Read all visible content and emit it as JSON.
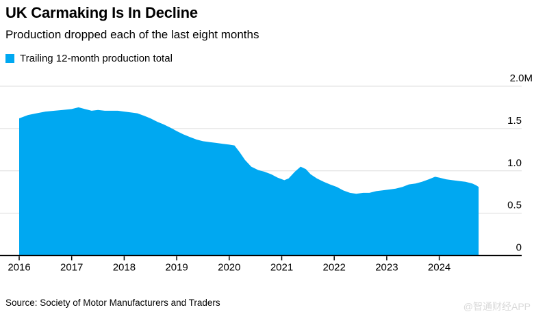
{
  "header": {
    "title": "UK Carmaking Is In Decline",
    "subtitle": "Production dropped each of the last eight months"
  },
  "legend": {
    "label": "Trailing 12-month production total",
    "swatch_color": "#00a8f1"
  },
  "source": {
    "label": "Source: Society of Motor Manufacturers and Traders"
  },
  "watermark": {
    "label": "@智通财经APP"
  },
  "colors": {
    "area": "#00a8f1",
    "gridline": "#dcdcdc",
    "axis": "#000000",
    "tick_label": "#000000",
    "watermark": "#d9d9d9"
  },
  "chart_data": {
    "type": "area",
    "title": "UK Carmaking Is In Decline",
    "subtitle": "Production dropped each of the last eight months",
    "unit": "M vehicles",
    "grid": "horizontal",
    "legend_position": "top-left",
    "y_axis_side": "right",
    "ylim": [
      0,
      2.0
    ],
    "x_range_shown": [
      2016.0,
      2024.75
    ],
    "yticks": [
      {
        "value": 0.0,
        "label": "0"
      },
      {
        "value": 0.5,
        "label": "0.5"
      },
      {
        "value": 1.0,
        "label": "1.0"
      },
      {
        "value": 1.5,
        "label": "1.5"
      },
      {
        "value": 2.0,
        "label": "2.0M"
      }
    ],
    "xticks": [
      {
        "value": 2016,
        "label": "2016"
      },
      {
        "value": 2017,
        "label": "2017"
      },
      {
        "value": 2018,
        "label": "2018"
      },
      {
        "value": 2019,
        "label": "2019"
      },
      {
        "value": 2020,
        "label": "2020"
      },
      {
        "value": 2021,
        "label": "2021"
      },
      {
        "value": 2022,
        "label": "2022"
      },
      {
        "value": 2023,
        "label": "2023"
      },
      {
        "value": 2024,
        "label": "2024"
      }
    ],
    "series": [
      {
        "name": "Trailing 12-month production total",
        "points": [
          [
            2016.0,
            1.62
          ],
          [
            2016.17,
            1.66
          ],
          [
            2016.33,
            1.68
          ],
          [
            2016.5,
            1.7
          ],
          [
            2016.67,
            1.71
          ],
          [
            2016.83,
            1.72
          ],
          [
            2017.0,
            1.73
          ],
          [
            2017.13,
            1.75
          ],
          [
            2017.25,
            1.73
          ],
          [
            2017.38,
            1.71
          ],
          [
            2017.5,
            1.72
          ],
          [
            2017.63,
            1.71
          ],
          [
            2017.75,
            1.71
          ],
          [
            2017.88,
            1.71
          ],
          [
            2018.0,
            1.7
          ],
          [
            2018.13,
            1.69
          ],
          [
            2018.25,
            1.68
          ],
          [
            2018.38,
            1.65
          ],
          [
            2018.5,
            1.62
          ],
          [
            2018.63,
            1.58
          ],
          [
            2018.75,
            1.55
          ],
          [
            2018.88,
            1.51
          ],
          [
            2019.0,
            1.47
          ],
          [
            2019.13,
            1.43
          ],
          [
            2019.25,
            1.4
          ],
          [
            2019.38,
            1.37
          ],
          [
            2019.5,
            1.35
          ],
          [
            2019.63,
            1.34
          ],
          [
            2019.75,
            1.33
          ],
          [
            2019.88,
            1.32
          ],
          [
            2020.0,
            1.31
          ],
          [
            2020.1,
            1.3
          ],
          [
            2020.2,
            1.22
          ],
          [
            2020.3,
            1.13
          ],
          [
            2020.42,
            1.05
          ],
          [
            2020.55,
            1.01
          ],
          [
            2020.67,
            0.99
          ],
          [
            2020.8,
            0.96
          ],
          [
            2020.92,
            0.92
          ],
          [
            2021.05,
            0.89
          ],
          [
            2021.13,
            0.91
          ],
          [
            2021.25,
            0.99
          ],
          [
            2021.36,
            1.05
          ],
          [
            2021.46,
            1.02
          ],
          [
            2021.55,
            0.96
          ],
          [
            2021.67,
            0.91
          ],
          [
            2021.8,
            0.87
          ],
          [
            2021.92,
            0.84
          ],
          [
            2022.05,
            0.81
          ],
          [
            2022.17,
            0.77
          ],
          [
            2022.3,
            0.74
          ],
          [
            2022.42,
            0.73
          ],
          [
            2022.55,
            0.74
          ],
          [
            2022.67,
            0.74
          ],
          [
            2022.8,
            0.76
          ],
          [
            2022.92,
            0.77
          ],
          [
            2023.05,
            0.78
          ],
          [
            2023.17,
            0.79
          ],
          [
            2023.3,
            0.81
          ],
          [
            2023.42,
            0.84
          ],
          [
            2023.55,
            0.85
          ],
          [
            2023.67,
            0.87
          ],
          [
            2023.8,
            0.9
          ],
          [
            2023.92,
            0.93
          ],
          [
            2024.0,
            0.92
          ],
          [
            2024.13,
            0.9
          ],
          [
            2024.25,
            0.89
          ],
          [
            2024.38,
            0.88
          ],
          [
            2024.5,
            0.87
          ],
          [
            2024.63,
            0.85
          ],
          [
            2024.7,
            0.83
          ],
          [
            2024.75,
            0.81
          ]
        ]
      }
    ]
  }
}
